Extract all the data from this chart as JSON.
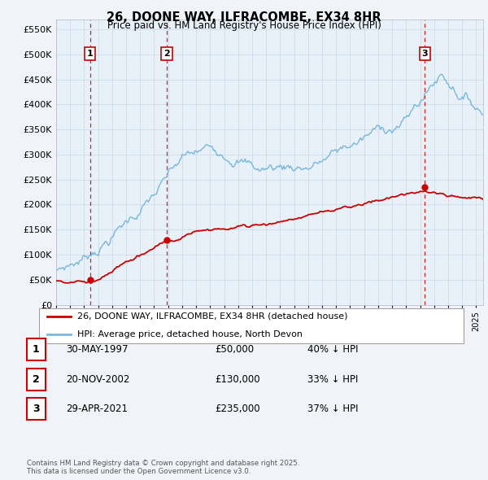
{
  "title": "26, DOONE WAY, ILFRACOMBE, EX34 8HR",
  "subtitle": "Price paid vs. HM Land Registry's House Price Index (HPI)",
  "xlim_start": 1995.25,
  "xlim_end": 2025.5,
  "ylim_min": 0,
  "ylim_max": 570000,
  "yticks": [
    0,
    50000,
    100000,
    150000,
    200000,
    250000,
    300000,
    350000,
    400000,
    450000,
    500000,
    550000
  ],
  "ytick_labels": [
    "£0",
    "£50K",
    "£100K",
    "£150K",
    "£200K",
    "£250K",
    "£300K",
    "£350K",
    "£400K",
    "£450K",
    "£500K",
    "£550K"
  ],
  "sale_dates": [
    1997.413,
    2002.893,
    2021.328
  ],
  "sale_prices": [
    50000,
    130000,
    235000
  ],
  "sale_labels": [
    "1",
    "2",
    "3"
  ],
  "hpi_line_color": "#7ab8d9",
  "price_line_color": "#cc0000",
  "vline_color": "#cc0000",
  "background_color": "#f0f4f8",
  "plot_bg_color": "#e8f0f8",
  "legend_label_red": "26, DOONE WAY, ILFRACOMBE, EX34 8HR (detached house)",
  "legend_label_blue": "HPI: Average price, detached house, North Devon",
  "table_entries": [
    {
      "num": "1",
      "date": "30-MAY-1997",
      "price": "£50,000",
      "pct": "40% ↓ HPI"
    },
    {
      "num": "2",
      "date": "20-NOV-2002",
      "price": "£130,000",
      "pct": "33% ↓ HPI"
    },
    {
      "num": "3",
      "date": "29-APR-2021",
      "price": "£235,000",
      "pct": "37% ↓ HPI"
    }
  ],
  "footer": "Contains HM Land Registry data © Crown copyright and database right 2025.\nThis data is licensed under the Open Government Licence v3.0."
}
